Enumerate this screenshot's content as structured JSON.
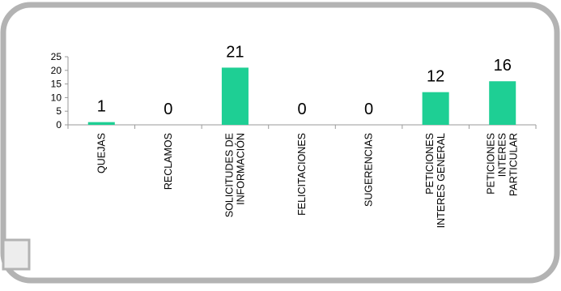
{
  "chart_data": {
    "type": "bar",
    "categories": [
      [
        "QUEJAS"
      ],
      [
        "RECLAMOS"
      ],
      [
        "SOLICITUDES DE",
        "INFORMACIÓN"
      ],
      [
        "FELICITACIONES"
      ],
      [
        "SUGERENCIAS"
      ],
      [
        "PETICIONES",
        "INTERES GENERAL"
      ],
      [
        "PETICIONES",
        "INTERES",
        "PARTICULAR"
      ]
    ],
    "values": [
      1,
      0,
      21,
      0,
      0,
      12,
      16
    ],
    "data_labels": [
      "1",
      "0",
      "21",
      "0",
      "0",
      "12",
      "16"
    ],
    "yticks": [
      "0",
      "5",
      "10",
      "15",
      "20",
      "25"
    ],
    "ylim": [
      0,
      25
    ],
    "grid": false,
    "legend": "none",
    "bar_color": "#1ecf94",
    "axis_color": "#9a9a9a"
  },
  "frame": {
    "border_color": "#b3b3b3",
    "tab_fill": "#ededed"
  }
}
